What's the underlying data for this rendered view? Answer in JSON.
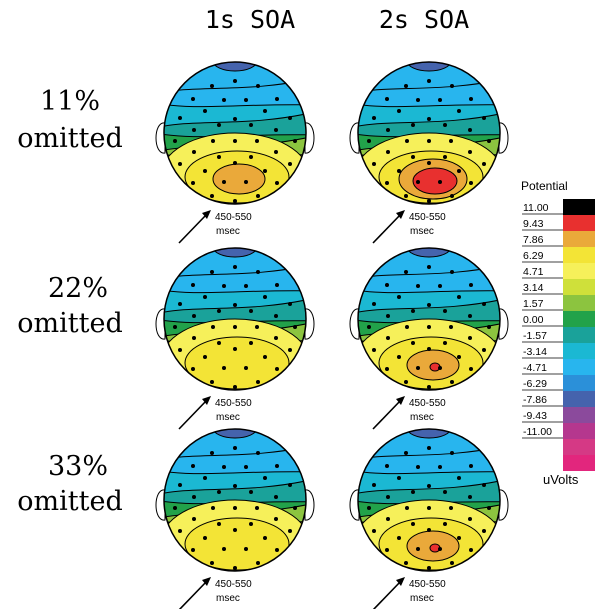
{
  "columns": [
    "1s  SOA",
    "2s  SOA"
  ],
  "rows": [
    {
      "label": [
        "11%",
        "omitted"
      ]
    },
    {
      "label": [
        "22%",
        "omitted"
      ]
    },
    {
      "label": [
        "33%",
        "omitted"
      ]
    }
  ],
  "latency_label": [
    "450-550",
    "msec"
  ],
  "legend": {
    "title": "Potential",
    "unit": "uVolts",
    "ticks": [
      "11.00",
      "9.43",
      "7.86",
      "6.29",
      "4.71",
      "3.14",
      "1.57",
      "0.00",
      "-1.57",
      "-3.14",
      "-4.71",
      "-6.29",
      "-7.86",
      "-9.43",
      "-11.00"
    ],
    "colors": [
      "#000000",
      "#e8302f",
      "#eaa93a",
      "#f3e436",
      "#f6f05a",
      "#cfe03a",
      "#8cc43f",
      "#22a24a",
      "#1aa29a",
      "#1bb8d3",
      "#28b5ee",
      "#2b90d9",
      "#4563ad",
      "#8b4a9c",
      "#b5378e",
      "#d53985",
      "#e2267d"
    ]
  },
  "maps": [
    {
      "row": 0,
      "col": 0,
      "peak": 1
    },
    {
      "row": 0,
      "col": 1,
      "peak": 3
    },
    {
      "row": 1,
      "col": 0,
      "peak": 0
    },
    {
      "row": 1,
      "col": 1,
      "peak": 2
    },
    {
      "row": 2,
      "col": 0,
      "peak": 0
    },
    {
      "row": 2,
      "col": 1,
      "peak": 2
    }
  ]
}
